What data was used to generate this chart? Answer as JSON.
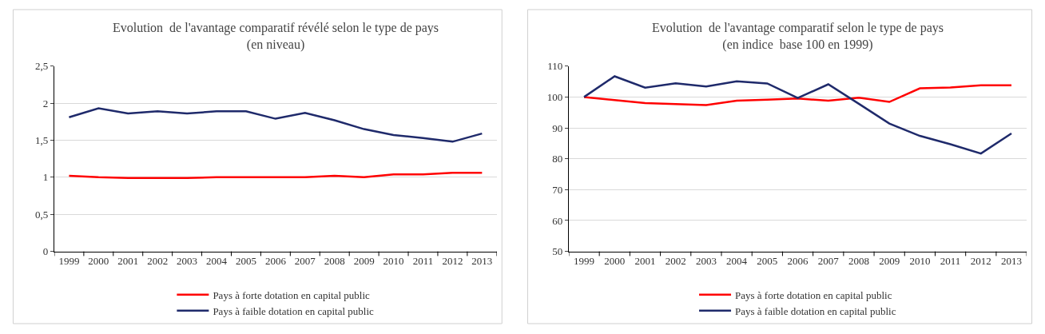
{
  "chart_data": [
    {
      "type": "line",
      "title": "Evolution  de l'avantage comparatif révélé selon le type de pays",
      "subtitle": "(en niveau)",
      "categories": [
        "1999",
        "2000",
        "2001",
        "2002",
        "2003",
        "2004",
        "2005",
        "2006",
        "2007",
        "2008",
        "2009",
        "2010",
        "2011",
        "2012",
        "2013"
      ],
      "series": [
        {
          "name": "Pays à forte dotation en capital public",
          "color": "#ff0000",
          "values": [
            1.02,
            1.0,
            0.99,
            0.99,
            0.99,
            1.0,
            1.0,
            1.0,
            1.0,
            1.02,
            1.0,
            1.04,
            1.04,
            1.06,
            1.06
          ]
        },
        {
          "name": "Pays à faible dotation en capital public",
          "color": "#1f2a6b",
          "values": [
            1.81,
            1.93,
            1.86,
            1.89,
            1.86,
            1.89,
            1.89,
            1.79,
            1.87,
            1.77,
            1.65,
            1.57,
            1.53,
            1.48,
            1.59
          ]
        }
      ],
      "ylim": [
        0,
        2.5
      ],
      "yticks": [
        0,
        {
          "value": 0.5,
          "label": "0,5"
        },
        1,
        {
          "value": 1.5,
          "label": "1,5"
        },
        2,
        {
          "value": 2.5,
          "label": "2,5"
        }
      ],
      "grid": "y",
      "legend": "bottom",
      "marker": "none",
      "line_style": "solid"
    },
    {
      "type": "line",
      "title": "Evolution  de l'avantage comparatif selon le type de pays",
      "subtitle": "(en indice  base 100 en 1999)",
      "categories": [
        "1999",
        "2000",
        "2001",
        "2002",
        "2003",
        "2004",
        "2005",
        "2006",
        "2007",
        "2008",
        "2009",
        "2010",
        "2011",
        "2012",
        "2013"
      ],
      "series": [
        {
          "name": "Pays à forte dotation en capital public",
          "color": "#ff0000",
          "values": [
            100,
            99,
            98,
            97.7,
            97.4,
            98.8,
            99.1,
            99.5,
            98.8,
            99.8,
            98.4,
            102.8,
            103.1,
            103.8,
            103.8
          ]
        },
        {
          "name": "Pays à faible dotation en capital public",
          "color": "#1f2a6b",
          "values": [
            100,
            106.7,
            103,
            104.4,
            103.4,
            105.1,
            104.4,
            99.7,
            104.1,
            97.8,
            91.4,
            87.4,
            84.7,
            81.7,
            88.2
          ]
        }
      ],
      "ylim": [
        50,
        110
      ],
      "yticks": [
        50,
        60,
        70,
        80,
        90,
        100,
        110
      ],
      "grid": "y",
      "legend": "bottom",
      "marker": "none",
      "line_style": "solid"
    }
  ]
}
